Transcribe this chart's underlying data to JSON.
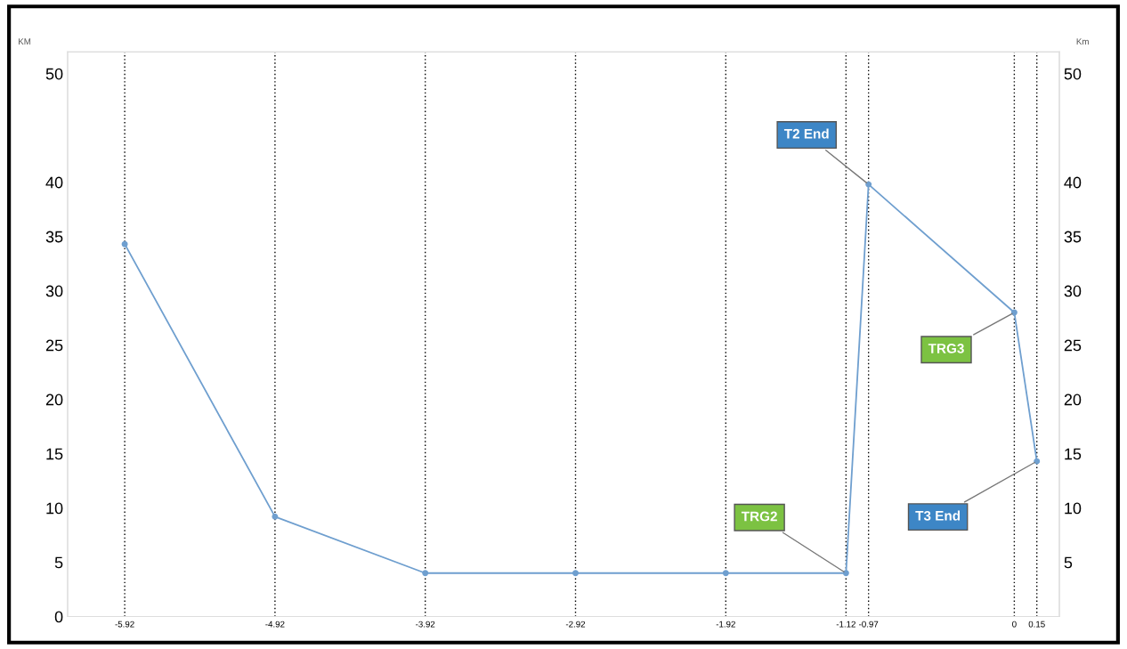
{
  "chart_data": {
    "type": "line",
    "ylabel": "KM",
    "y2label": "Km",
    "x": [
      -5.92,
      -4.92,
      -3.92,
      -2.92,
      -1.92,
      -1.12,
      -0.97,
      0,
      0.15
    ],
    "series": [
      {
        "color": "#6f9fcf",
        "values": [
          34.3,
          9.2,
          4,
          4,
          4,
          4,
          39.8,
          28,
          14.3
        ]
      }
    ],
    "xlim": [
      -6.3,
      0.3
    ],
    "xticks": [
      -5.92,
      -4.92,
      -3.92,
      -2.92,
      -1.92,
      -1.12,
      -0.97,
      0,
      0.15
    ],
    "ylim": [
      0,
      52
    ],
    "yticks": [
      0,
      5,
      10,
      15,
      20,
      25,
      30,
      35,
      40,
      50
    ],
    "y2lim": [
      0,
      52
    ],
    "y2ticks": [
      5,
      10,
      15,
      20,
      25,
      30,
      35,
      40,
      50
    ],
    "grid": "x",
    "marker": "circle",
    "line_style": "solid",
    "annotations": [
      {
        "text": "T2 End",
        "x": -0.97,
        "y": 39.8
      },
      {
        "text": "TRG3",
        "x": 0,
        "y": 28
      },
      {
        "text": "T3 End",
        "x": 0.15,
        "y": 14.3
      },
      {
        "text": "TRG2",
        "x": -1.12,
        "y": 4
      }
    ]
  }
}
